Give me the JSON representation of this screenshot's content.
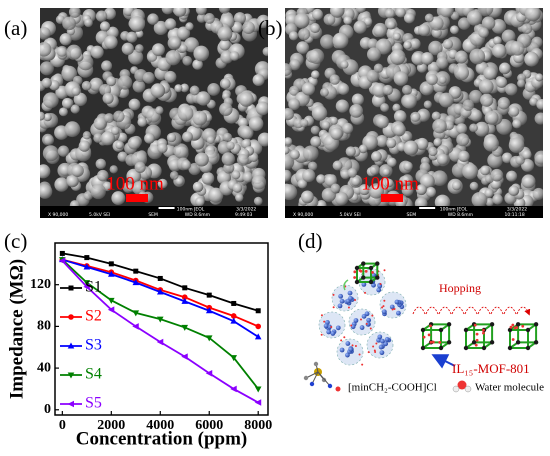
{
  "panels": [
    {
      "label": "(a)",
      "scale_text": "100 nm",
      "footer_top": [
        "100nm JEOL",
        "3/3/2022"
      ],
      "footer_bottom": [
        "X 90,000",
        "5.0kV SEI",
        "SEM",
        "WD 8.6mm",
        "9:49:03"
      ]
    },
    {
      "label": "(b)",
      "scale_text": "100 nm",
      "footer_top": [
        "100nm JEOL",
        "3/3/2022"
      ],
      "footer_bottom": [
        "X 90,000",
        "5.0kV SEI",
        "SEM",
        "WD 8.6mm",
        "10:11:18"
      ]
    }
  ],
  "chart_label": "(c)",
  "chart_data": {
    "type": "line",
    "ylabel": "Impedance (MΩ)",
    "xlabel": "Concentration (ppm)",
    "x": [
      0,
      1000,
      2000,
      3000,
      4000,
      5000,
      6000,
      7000,
      8000
    ],
    "xlim": [
      -300,
      8400
    ],
    "xticks": [
      0,
      2000,
      4000,
      6000,
      8000
    ],
    "ylim": [
      -5,
      160
    ],
    "yticks": [
      0,
      40,
      80,
      120
    ],
    "legend": "upper left",
    "series": [
      {
        "name": "S1",
        "color": "#000000",
        "values": [
          150,
          146,
          140,
          133,
          126,
          117,
          110,
          102,
          95
        ]
      },
      {
        "name": "S2",
        "color": "#ff0000",
        "values": [
          144,
          138,
          132,
          124,
          115,
          108,
          98,
          90,
          80
        ]
      },
      {
        "name": "S3",
        "color": "#0000ff",
        "values": [
          144,
          137,
          130,
          122,
          113,
          104,
          95,
          85,
          70
        ]
      },
      {
        "name": "S4",
        "color": "#008000",
        "values": [
          144,
          122,
          105,
          93,
          87,
          79,
          69,
          50,
          20
        ]
      },
      {
        "name": "S5",
        "color": "#8b00ff",
        "values": [
          143,
          118,
          96,
          80,
          65,
          51,
          35,
          20,
          7
        ]
      }
    ]
  },
  "diagram": {
    "label": "(d)",
    "hopping": "Hopping",
    "framework": "IL₁₅-MOF-801",
    "ionic_liquid": "[minCH₂-COOH]Cl",
    "water": "Water molecule"
  }
}
